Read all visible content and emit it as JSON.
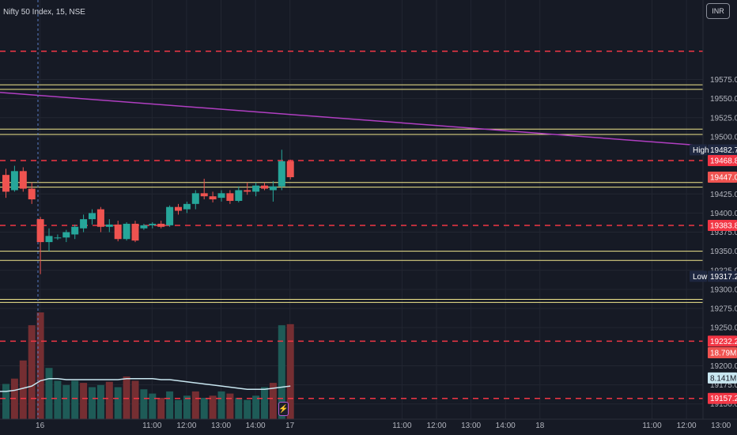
{
  "header": {
    "title": "Nifty 50 Index, 15, NSE"
  },
  "currency_button": {
    "label": "INR"
  },
  "colors": {
    "background": "#161a25",
    "up": "#26a69a",
    "down": "#ef5350",
    "level_red": "#f23645",
    "level_yellow": "#f0e68c",
    "trend": "#b13fc2",
    "ma": "#c8e6f0"
  },
  "chart_data": {
    "type": "candlestick",
    "price_axis": {
      "ylim": [
        19130,
        19675
      ],
      "ticks": [
        "19575.00",
        "19550.00",
        "19525.00",
        "19500.00",
        "19425.00",
        "19400.00",
        "19375.00",
        "19350.00",
        "19325.00",
        "19300.00",
        "19275.00",
        "19250.00",
        "19200.00",
        "19175.00",
        "19150.00"
      ]
    },
    "time_axis": {
      "ticks": [
        {
          "label": "16",
          "bar": 4
        },
        {
          "label": "11:00",
          "bar": 17
        },
        {
          "label": "12:00",
          "bar": 21
        },
        {
          "label": "13:00",
          "bar": 25
        },
        {
          "label": "14:00",
          "bar": 29
        },
        {
          "label": "17",
          "bar": 33
        },
        {
          "label": "11:00",
          "bar": 46
        },
        {
          "label": "12:00",
          "bar": 50
        },
        {
          "label": "13:00",
          "bar": 54
        },
        {
          "label": "14:00",
          "bar": 58
        },
        {
          "label": "18",
          "bar": 62
        },
        {
          "label": "11:00",
          "bar": 75
        },
        {
          "label": "12:00",
          "bar": 79
        },
        {
          "label": "13:00",
          "bar": 83
        }
      ]
    },
    "candles": [
      {
        "o": 19450,
        "h": 19458,
        "l": 19420,
        "c": 19428
      },
      {
        "o": 19430,
        "h": 19462,
        "l": 19428,
        "c": 19455
      },
      {
        "o": 19455,
        "h": 19460,
        "l": 19428,
        "c": 19432
      },
      {
        "o": 19432,
        "h": 19440,
        "l": 19412,
        "c": 19418
      },
      {
        "o": 19392,
        "h": 19395,
        "l": 19320,
        "c": 19362
      },
      {
        "o": 19362,
        "h": 19380,
        "l": 19350,
        "c": 19370
      },
      {
        "o": 19368,
        "h": 19372,
        "l": 19365,
        "c": 19368
      },
      {
        "o": 19368,
        "h": 19378,
        "l": 19362,
        "c": 19375
      },
      {
        "o": 19372,
        "h": 19385,
        "l": 19366,
        "c": 19382
      },
      {
        "o": 19380,
        "h": 19398,
        "l": 19375,
        "c": 19392
      },
      {
        "o": 19392,
        "h": 19405,
        "l": 19385,
        "c": 19400
      },
      {
        "o": 19405,
        "h": 19408,
        "l": 19375,
        "c": 19382
      },
      {
        "o": 19382,
        "h": 19392,
        "l": 19375,
        "c": 19385
      },
      {
        "o": 19385,
        "h": 19390,
        "l": 19363,
        "c": 19366
      },
      {
        "o": 19366,
        "h": 19388,
        "l": 19364,
        "c": 19386
      },
      {
        "o": 19386,
        "h": 19390,
        "l": 19362,
        "c": 19364
      },
      {
        "o": 19380,
        "h": 19386,
        "l": 19378,
        "c": 19384
      },
      {
        "o": 19384,
        "h": 19388,
        "l": 19380,
        "c": 19386
      },
      {
        "o": 19386,
        "h": 19390,
        "l": 19380,
        "c": 19382
      },
      {
        "o": 19384,
        "h": 19410,
        "l": 19382,
        "c": 19408
      },
      {
        "o": 19408,
        "h": 19412,
        "l": 19398,
        "c": 19403
      },
      {
        "o": 19405,
        "h": 19415,
        "l": 19400,
        "c": 19412
      },
      {
        "o": 19412,
        "h": 19430,
        "l": 19405,
        "c": 19426
      },
      {
        "o": 19426,
        "h": 19445,
        "l": 19418,
        "c": 19422
      },
      {
        "o": 19422,
        "h": 19428,
        "l": 19414,
        "c": 19418
      },
      {
        "o": 19420,
        "h": 19430,
        "l": 19415,
        "c": 19426
      },
      {
        "o": 19426,
        "h": 19430,
        "l": 19412,
        "c": 19416
      },
      {
        "o": 19416,
        "h": 19435,
        "l": 19414,
        "c": 19430
      },
      {
        "o": 19430,
        "h": 19440,
        "l": 19424,
        "c": 19428
      },
      {
        "o": 19428,
        "h": 19440,
        "l": 19422,
        "c": 19436
      },
      {
        "o": 19436,
        "h": 19440,
        "l": 19430,
        "c": 19432
      },
      {
        "o": 19430,
        "h": 19442,
        "l": 19415,
        "c": 19435
      },
      {
        "o": 19435,
        "h": 19483,
        "l": 19430,
        "c": 19468
      },
      {
        "o": 19468,
        "h": 19470,
        "l": 19444,
        "c": 19447
      }
    ],
    "volume": [
      {
        "v": 0.33,
        "up": true
      },
      {
        "v": 0.38,
        "up": false
      },
      {
        "v": 0.55,
        "up": false
      },
      {
        "v": 0.88,
        "up": false
      },
      {
        "v": 1.0,
        "up": false
      },
      {
        "v": 0.48,
        "up": true
      },
      {
        "v": 0.36,
        "up": true
      },
      {
        "v": 0.32,
        "up": true
      },
      {
        "v": 0.36,
        "up": true
      },
      {
        "v": 0.34,
        "up": false
      },
      {
        "v": 0.3,
        "up": true
      },
      {
        "v": 0.32,
        "up": true
      },
      {
        "v": 0.35,
        "up": false
      },
      {
        "v": 0.3,
        "up": true
      },
      {
        "v": 0.4,
        "up": false
      },
      {
        "v": 0.36,
        "up": false
      },
      {
        "v": 0.28,
        "up": true
      },
      {
        "v": 0.24,
        "up": true
      },
      {
        "v": 0.2,
        "up": false
      },
      {
        "v": 0.26,
        "up": true
      },
      {
        "v": 0.18,
        "up": true
      },
      {
        "v": 0.22,
        "up": true
      },
      {
        "v": 0.26,
        "up": false
      },
      {
        "v": 0.2,
        "up": true
      },
      {
        "v": 0.22,
        "up": false
      },
      {
        "v": 0.26,
        "up": true
      },
      {
        "v": 0.24,
        "up": false
      },
      {
        "v": 0.2,
        "up": true
      },
      {
        "v": 0.18,
        "up": true
      },
      {
        "v": 0.22,
        "up": true
      },
      {
        "v": 0.3,
        "up": true
      },
      {
        "v": 0.34,
        "up": false
      },
      {
        "v": 0.88,
        "up": true
      },
      {
        "v": 0.89,
        "up": false
      }
    ],
    "volume_ma": [
      0.26,
      0.27,
      0.29,
      0.31,
      0.36,
      0.38,
      0.38,
      0.37,
      0.37,
      0.37,
      0.37,
      0.37,
      0.37,
      0.37,
      0.38,
      0.38,
      0.38,
      0.38,
      0.37,
      0.37,
      0.36,
      0.35,
      0.34,
      0.33,
      0.32,
      0.31,
      0.3,
      0.29,
      0.28,
      0.28,
      0.28,
      0.29,
      0.3,
      0.31
    ],
    "red_levels": [
      19612,
      19468.8,
      19383.8,
      19232.25,
      19157.2
    ],
    "yellow_levels": [
      19568,
      19562,
      19510,
      19503,
      19440,
      19434,
      19350,
      19338,
      19287,
      19283
    ],
    "trendline": {
      "from_price": 19558,
      "to_price": 19488
    },
    "highlights": [
      {
        "label": "High",
        "price": "19482.75",
        "value": 19482.75,
        "color": "#1e2740"
      },
      {
        "label": "",
        "price": "19468.80",
        "value": 19468.8,
        "color": "#f23645"
      },
      {
        "label": "",
        "price": "19447.00",
        "value": 19447.0,
        "color": "#ef5350"
      },
      {
        "label": "",
        "price": "19383.80",
        "value": 19383.8,
        "color": "#f23645"
      },
      {
        "label": "Low",
        "price": "19317.20",
        "value": 19317.2,
        "color": "#1e2740"
      },
      {
        "label": "",
        "price": "19232.25",
        "value": 19232.25,
        "color": "#f23645"
      },
      {
        "label": "",
        "price": "18.79M",
        "value": 19217,
        "color": "#ef5350"
      },
      {
        "label": "",
        "price": "8.141M",
        "value": 19184,
        "color": "#c8e6f0"
      },
      {
        "label": "",
        "price": "19157.20",
        "value": 19157.2,
        "color": "#f23645"
      }
    ]
  }
}
